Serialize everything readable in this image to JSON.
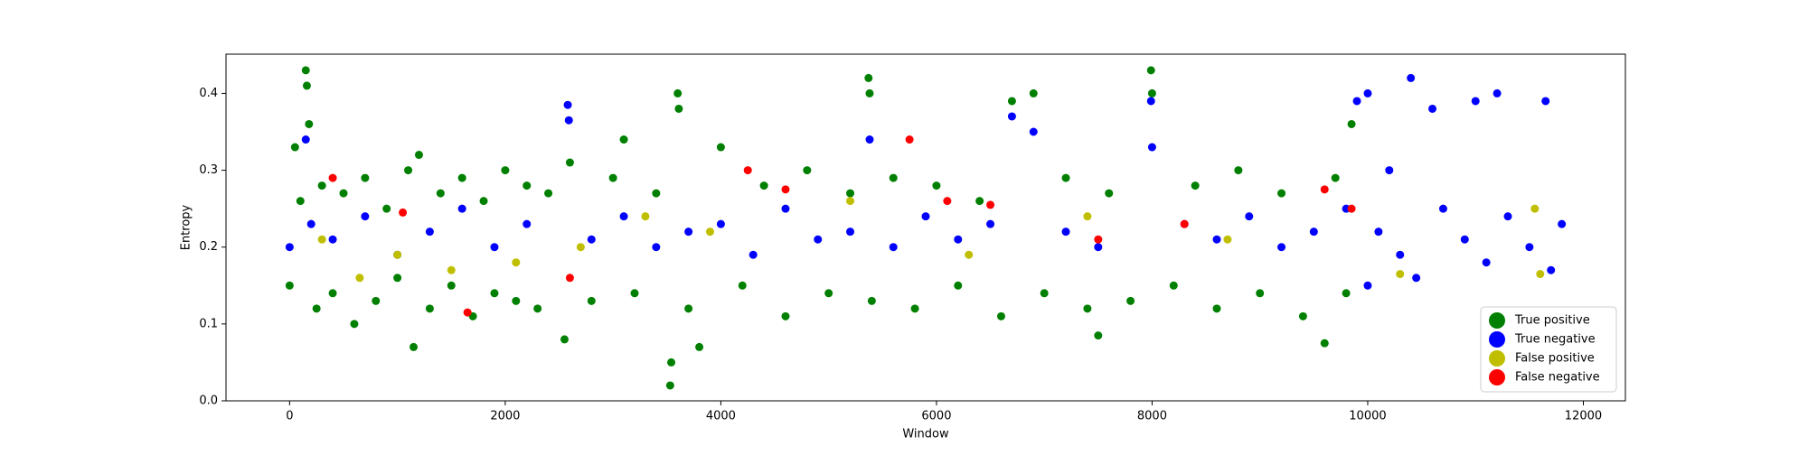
{
  "chart_data": {
    "type": "scatter",
    "xlabel": "Window",
    "ylabel": "Entropy",
    "xlim": [
      -590,
      12390
    ],
    "ylim": [
      0,
      0.451
    ],
    "xticks": [
      0,
      2000,
      4000,
      6000,
      8000,
      10000,
      12000
    ],
    "yticks": [
      {
        "value": 0,
        "label": "0.0"
      },
      0.1,
      0.2,
      0.3,
      0.4
    ],
    "legend": "lower right",
    "series": [
      {
        "name": "True positive",
        "color": "#008000",
        "x": [
          0,
          50,
          100,
          150,
          160,
          180,
          250,
          300,
          400,
          500,
          600,
          700,
          800,
          900,
          1000,
          1100,
          1150,
          1200,
          1300,
          1400,
          1500,
          1600,
          1700,
          1800,
          1900,
          2000,
          2100,
          2200,
          2300,
          2400,
          2550,
          2600,
          2800,
          3000,
          3100,
          3200,
          3400,
          3530,
          3540,
          3600,
          3610,
          3700,
          3800,
          4000,
          4200,
          4400,
          4600,
          4800,
          5000,
          5200,
          5370,
          5380,
          5400,
          5600,
          5800,
          6000,
          6200,
          6400,
          6600,
          6700,
          6900,
          7000,
          7200,
          7400,
          7500,
          7600,
          7800,
          7990,
          8000,
          8200,
          8400,
          8600,
          8800,
          9000,
          9200,
          9400,
          9600,
          9700,
          9800,
          9850
        ],
        "y": [
          0.15,
          0.33,
          0.26,
          0.43,
          0.41,
          0.36,
          0.12,
          0.28,
          0.14,
          0.27,
          0.1,
          0.29,
          0.13,
          0.25,
          0.16,
          0.3,
          0.07,
          0.32,
          0.12,
          0.27,
          0.15,
          0.29,
          0.11,
          0.26,
          0.14,
          0.3,
          0.13,
          0.28,
          0.12,
          0.27,
          0.08,
          0.31,
          0.13,
          0.29,
          0.34,
          0.14,
          0.27,
          0.02,
          0.05,
          0.4,
          0.38,
          0.12,
          0.07,
          0.33,
          0.15,
          0.28,
          0.11,
          0.3,
          0.14,
          0.27,
          0.42,
          0.4,
          0.13,
          0.29,
          0.12,
          0.28,
          0.15,
          0.26,
          0.11,
          0.39,
          0.4,
          0.14,
          0.29,
          0.12,
          0.085,
          0.27,
          0.13,
          0.43,
          0.4,
          0.15,
          0.28,
          0.12,
          0.3,
          0.14,
          0.27,
          0.11,
          0.075,
          0.29,
          0.14,
          0.36
        ]
      },
      {
        "name": "True negative",
        "color": "#0000ff",
        "x": [
          0,
          150,
          200,
          400,
          700,
          1000,
          1300,
          1600,
          1900,
          2200,
          2580,
          2590,
          2800,
          3100,
          3400,
          3700,
          4000,
          4300,
          4600,
          4900,
          5200,
          5380,
          5600,
          5900,
          6200,
          6500,
          6700,
          6900,
          7200,
          7500,
          7990,
          8000,
          8300,
          8600,
          8900,
          9200,
          9500,
          9800,
          9900,
          10000,
          10000,
          10100,
          10200,
          10300,
          10400,
          10450,
          10600,
          10700,
          10900,
          11000,
          11100,
          11200,
          11300,
          11500,
          11650,
          11700,
          11800
        ],
        "y": [
          0.2,
          0.34,
          0.23,
          0.21,
          0.24,
          0.19,
          0.22,
          0.25,
          0.2,
          0.23,
          0.385,
          0.365,
          0.21,
          0.24,
          0.2,
          0.22,
          0.23,
          0.19,
          0.25,
          0.21,
          0.22,
          0.34,
          0.2,
          0.24,
          0.21,
          0.23,
          0.37,
          0.35,
          0.22,
          0.2,
          0.39,
          0.33,
          0.23,
          0.21,
          0.24,
          0.2,
          0.22,
          0.25,
          0.39,
          0.4,
          0.15,
          0.22,
          0.3,
          0.19,
          0.42,
          0.16,
          0.38,
          0.25,
          0.21,
          0.39,
          0.18,
          0.4,
          0.24,
          0.2,
          0.39,
          0.17,
          0.23
        ]
      },
      {
        "name": "False positive",
        "color": "#bfbf00",
        "x": [
          300,
          650,
          1000,
          1500,
          2100,
          2700,
          3300,
          3900,
          5200,
          6300,
          7400,
          8700,
          10300,
          11550,
          11600
        ],
        "y": [
          0.21,
          0.16,
          0.19,
          0.17,
          0.18,
          0.2,
          0.24,
          0.22,
          0.26,
          0.19,
          0.24,
          0.21,
          0.165,
          0.25,
          0.165
        ]
      },
      {
        "name": "False negative",
        "color": "#ff0000",
        "x": [
          400,
          1050,
          1650,
          2600,
          4250,
          4600,
          5750,
          6100,
          6500,
          7500,
          8300,
          9600,
          9850
        ],
        "y": [
          0.29,
          0.245,
          0.115,
          0.16,
          0.3,
          0.275,
          0.34,
          0.26,
          0.255,
          0.21,
          0.23,
          0.275,
          0.25
        ]
      }
    ]
  }
}
